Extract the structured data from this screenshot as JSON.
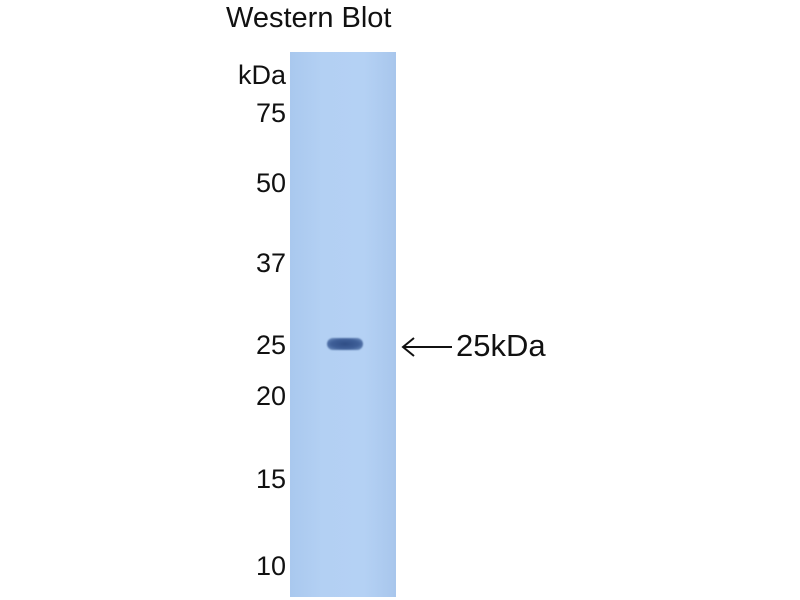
{
  "title": "Western Blot",
  "unit_label": "kDa",
  "markers": [
    "75",
    "50",
    "37",
    "25",
    "20",
    "15",
    "10"
  ],
  "band_annotation": "25kDa",
  "colors": {
    "membrane": "#b4d1f4",
    "band": "#2f4d85"
  }
}
